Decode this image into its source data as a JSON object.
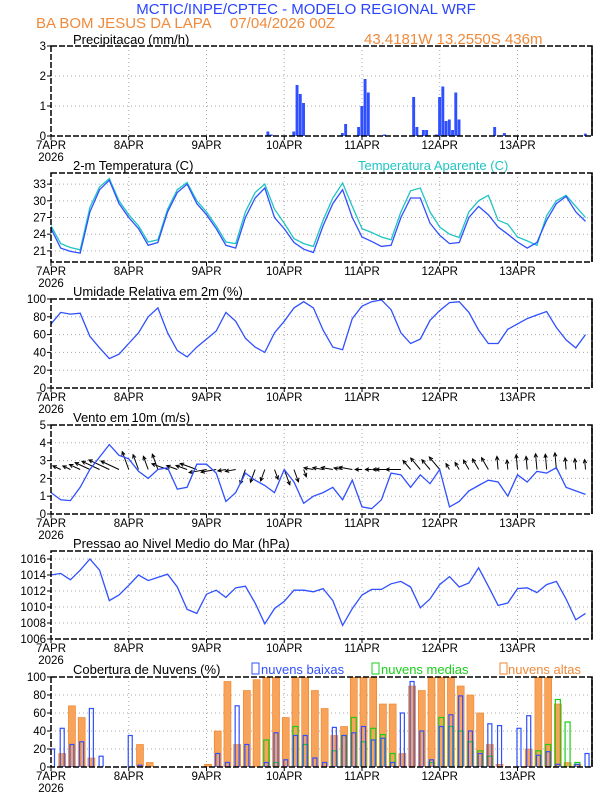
{
  "header": {
    "title": "MCTIC/INPE/CPTEC - MODELO REGIONAL WRF",
    "station": "BA BOM JESUS DA LAPA",
    "run": "07/04/2026 00Z",
    "location": "43.4181W 13.2550S 436m"
  },
  "colors": {
    "title_blue": "#2a44ff",
    "orange": "#f08a3a",
    "line_blue": "#3050ff",
    "cyan": "#20c4c4",
    "green": "#18d018",
    "bar_orange_fill": "#f7a45a",
    "bar_orange_stroke": "#f07c20"
  },
  "xaxis": {
    "unit": "hours since 07APR2026 00Z",
    "xlim": [
      0,
      167
    ],
    "tick_hours": [
      0,
      24,
      48,
      72,
      96,
      120,
      144
    ],
    "tick_labels": [
      "7APR",
      "8APR",
      "9APR",
      "10APR",
      "11APR",
      "12APR",
      "13APR"
    ],
    "year": "2026",
    "x": [
      0,
      3,
      6,
      9,
      12,
      15,
      18,
      21,
      24,
      27,
      30,
      33,
      36,
      39,
      42,
      45,
      48,
      51,
      54,
      57,
      60,
      63,
      66,
      69,
      72,
      75,
      78,
      81,
      84,
      87,
      90,
      93,
      96,
      99,
      102,
      105,
      108,
      111,
      114,
      117,
      120,
      123,
      126,
      129,
      132,
      135,
      138,
      141,
      144,
      147,
      150,
      153,
      156,
      159,
      162,
      165
    ]
  },
  "chart_data": [
    {
      "type": "bar",
      "title": "Precipitacao (mm/h)",
      "ylim": [
        0,
        3
      ],
      "yticks": [
        0,
        1,
        2,
        3
      ],
      "events": [
        [
          67,
          0.15
        ],
        [
          68,
          0.05
        ],
        [
          75,
          0.15
        ],
        [
          76,
          1.7
        ],
        [
          77,
          1.4
        ],
        [
          78,
          1.1
        ],
        [
          90,
          0.1
        ],
        [
          91,
          0.4
        ],
        [
          95,
          0.3
        ],
        [
          96,
          1.0
        ],
        [
          97,
          1.9
        ],
        [
          98,
          1.45
        ],
        [
          103,
          0.05
        ],
        [
          112,
          1.3
        ],
        [
          113,
          0.3
        ],
        [
          115,
          0.2
        ],
        [
          116,
          0.2
        ],
        [
          119,
          0.05
        ],
        [
          120,
          1.3
        ],
        [
          121,
          1.65
        ],
        [
          122,
          0.5
        ],
        [
          123,
          0.55
        ],
        [
          124,
          0.2
        ],
        [
          125,
          1.45
        ],
        [
          126,
          0.55
        ],
        [
          137,
          0.3
        ],
        [
          140,
          0.1
        ],
        [
          165,
          0.08
        ]
      ]
    },
    {
      "type": "line",
      "title": "2-m Temperatura (C)",
      "legend_right": "Temperatura Aparente (C)",
      "ylim": [
        19,
        35
      ],
      "yticks": [
        21,
        24,
        27,
        30,
        33
      ],
      "series": [
        {
          "name": "Temperatura",
          "values": [
            25,
            21.5,
            20.9,
            20.6,
            28,
            32,
            33.7,
            29.5,
            27,
            25,
            22,
            22.5,
            28,
            31.5,
            33,
            29.5,
            27.5,
            25,
            22,
            21.5,
            27,
            30.5,
            32.3,
            27,
            25,
            22.5,
            21.3,
            20.7,
            25.5,
            29.5,
            32,
            27,
            23.5,
            22.7,
            21.8,
            22,
            27,
            30.5,
            30.5,
            26,
            23.8,
            22.3,
            22.5,
            27,
            29,
            27.5,
            25.3,
            24,
            22.6,
            21.5,
            22.5,
            26.5,
            29.5,
            30.8,
            28,
            26.3
          ]
        },
        {
          "name": "Temperatura Aparente",
          "values": [
            25.5,
            22.3,
            21.6,
            21.2,
            28.8,
            32.5,
            34,
            30,
            27.5,
            25.5,
            22.6,
            23,
            28.5,
            32,
            33.3,
            30,
            28,
            25.5,
            22.6,
            22.3,
            28,
            31.5,
            33,
            28.5,
            26,
            23.2,
            22.3,
            21.8,
            26.5,
            30.5,
            33.2,
            29,
            25,
            24.3,
            23.5,
            23,
            28,
            31.8,
            32.3,
            28,
            25.3,
            24,
            23.4,
            28,
            30,
            31,
            26.5,
            25.8,
            23.5,
            22.8,
            22,
            27.3,
            30,
            31,
            29,
            27
          ]
        }
      ]
    },
    {
      "type": "line",
      "title": "Umidade Relativa em 2m (%)",
      "ylim": [
        0,
        100
      ],
      "yticks": [
        0,
        20,
        40,
        60,
        80,
        100
      ],
      "series": [
        {
          "name": "Umidade Relativa",
          "values": [
            72,
            85,
            83,
            84,
            58,
            45,
            33,
            38,
            50,
            62,
            80,
            90,
            62,
            42,
            35,
            46,
            55,
            64,
            85,
            75,
            56,
            46,
            40,
            62,
            75,
            90,
            97,
            90,
            65,
            46,
            43,
            78,
            92,
            97,
            99,
            88,
            62,
            50,
            55,
            76,
            87,
            96,
            97,
            85,
            65,
            50,
            50,
            66,
            72,
            78,
            82,
            86,
            68,
            54,
            45,
            60
          ]
        }
      ]
    },
    {
      "type": "line",
      "title": "Vento em 10m (m/s)",
      "ylim": [
        0,
        5
      ],
      "yticks": [
        0,
        1,
        2,
        3,
        4,
        5
      ],
      "series": [
        {
          "name": "Velocidade",
          "values": [
            1.2,
            0.8,
            0.75,
            1.5,
            2.5,
            3.2,
            3.9,
            3.3,
            3.1,
            2.4,
            2.0,
            2.5,
            2.6,
            1.4,
            1.5,
            2.8,
            2.8,
            2.3,
            0.7,
            1.2,
            2.3,
            1.9,
            1.6,
            1.2,
            2.5,
            1.8,
            0.6,
            1.0,
            1.2,
            1.5,
            0.8,
            1.9,
            0.4,
            0.3,
            0.8,
            2.3,
            2.2,
            1.5,
            2.2,
            1.7,
            2.5,
            0.4,
            0.7,
            1.3,
            1.6,
            1.9,
            1.8,
            1.0,
            2.2,
            1.8,
            2.4,
            2.3,
            2.6,
            1.5,
            1.3,
            1.1
          ]
        }
      ],
      "wind_direction_deg": [
        115,
        115,
        115,
        115,
        115,
        115,
        115,
        115,
        160,
        160,
        160,
        160,
        110,
        110,
        110,
        110,
        80,
        80,
        80,
        80,
        20,
        20,
        20,
        340,
        340,
        340,
        340,
        100,
        100,
        100,
        100,
        100,
        90,
        90,
        90,
        90,
        90,
        140,
        140,
        140,
        140,
        150,
        150,
        150,
        150,
        150,
        175,
        175,
        175,
        175,
        175,
        175,
        175,
        175,
        175,
        175
      ]
    },
    {
      "type": "line",
      "title": "Pressao ao Nivel Medio do Mar (hPa)",
      "ylim": [
        1006,
        1017
      ],
      "yticks": [
        1006,
        1008,
        1010,
        1012,
        1014,
        1016
      ],
      "series": [
        {
          "name": "Pressao",
          "values": [
            1014,
            1014.2,
            1013.4,
            1014.6,
            1016,
            1014.6,
            1010.8,
            1011.5,
            1012.7,
            1014,
            1013.3,
            1013.7,
            1014.1,
            1012.5,
            1009.7,
            1009.2,
            1011.6,
            1012.1,
            1011.2,
            1012.4,
            1012.6,
            1010.5,
            1007.9,
            1009.8,
            1010.7,
            1012.1,
            1012.1,
            1011.9,
            1012.3,
            1010.8,
            1007.7,
            1009.8,
            1011.5,
            1012.2,
            1012.2,
            1012.9,
            1013.2,
            1012.5,
            1009.9,
            1011,
            1012.8,
            1013.8,
            1012.5,
            1013,
            1014.9,
            1012.6,
            1010.2,
            1010.5,
            1012.3,
            1012.4,
            1011.8,
            1012.8,
            1013.2,
            1011,
            1008.4,
            1009.2
          ]
        }
      ]
    },
    {
      "type": "bar",
      "title": "Cobertura de Nuvens (%)",
      "ylim": [
        0,
        100
      ],
      "yticks": [
        0,
        20,
        40,
        60,
        80,
        100
      ],
      "legend": [
        "nuvens baixas",
        "nuvens medias",
        "nuvens altas"
      ],
      "series": [
        {
          "name": "nuvens altas",
          "values": [
            0,
            15,
            68,
            55,
            10,
            0,
            0,
            0,
            0,
            25,
            5,
            0,
            0,
            0,
            0,
            0,
            3,
            40,
            95,
            25,
            85,
            97,
            100,
            100,
            55,
            100,
            100,
            85,
            65,
            35,
            45,
            100,
            100,
            100,
            70,
            70,
            15,
            90,
            85,
            100,
            100,
            100,
            90,
            80,
            60,
            25,
            3,
            0,
            0,
            20,
            100,
            100,
            70,
            5,
            3,
            0
          ]
        },
        {
          "name": "nuvens medias",
          "values": [
            0,
            0,
            0,
            0,
            0,
            0,
            0,
            0,
            0,
            0,
            0,
            0,
            0,
            0,
            0,
            0,
            0,
            0,
            0,
            0,
            0,
            0,
            30,
            5,
            0,
            45,
            25,
            0,
            0,
            18,
            35,
            55,
            28,
            43,
            36,
            15,
            0,
            0,
            0,
            5,
            55,
            45,
            40,
            28,
            18,
            12,
            0,
            0,
            0,
            0,
            18,
            25,
            75,
            50,
            5,
            0
          ]
        },
        {
          "name": "nuvens baixas",
          "values": [
            20,
            43,
            25,
            28,
            65,
            12,
            0,
            0,
            35,
            2,
            0,
            0,
            0,
            0,
            0,
            0,
            0,
            15,
            5,
            68,
            25,
            0,
            5,
            38,
            8,
            35,
            35,
            10,
            5,
            44,
            35,
            38,
            45,
            30,
            32,
            5,
            60,
            95,
            40,
            8,
            45,
            58,
            79,
            40,
            15,
            48,
            46,
            0,
            43,
            57,
            13,
            17,
            3,
            0,
            3,
            15
          ]
        }
      ]
    }
  ]
}
